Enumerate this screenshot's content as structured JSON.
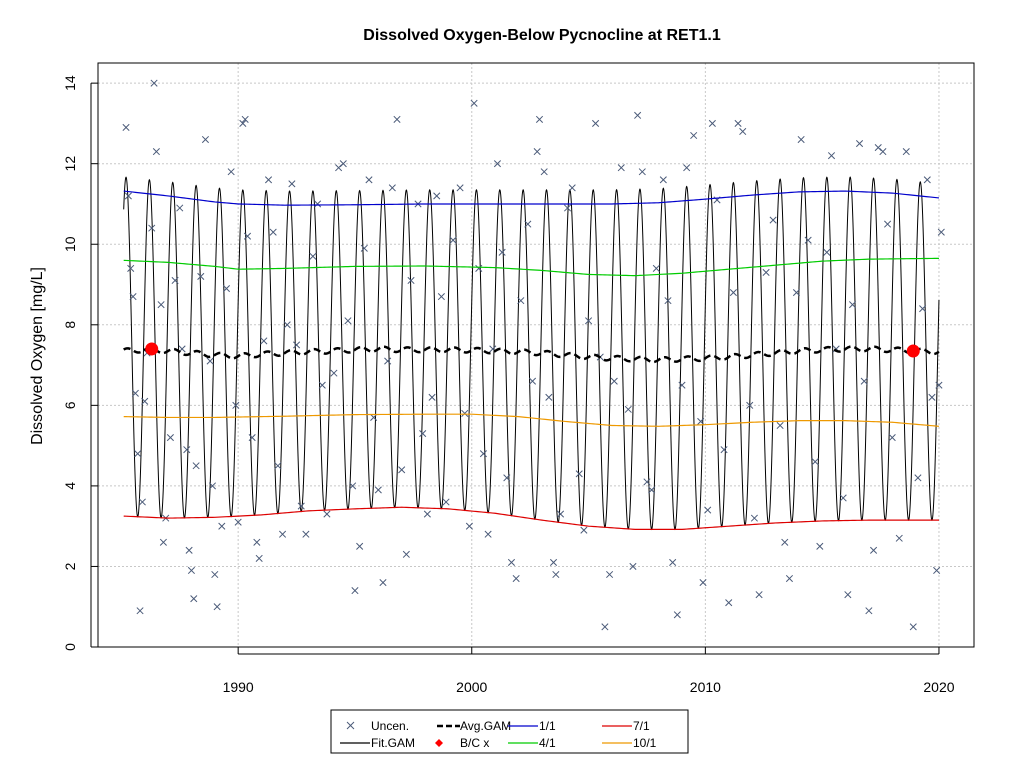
{
  "chart_data": {
    "type": "line",
    "title": "Dissolved Oxygen-Below Pycnocline at RET1.1",
    "xlabel": "",
    "ylabel": "Dissolved Oxygen [mg/L]",
    "xlim": [
      1984,
      2021.5
    ],
    "ylim": [
      0,
      14.5
    ],
    "x_ticks": [
      "1990",
      "2000",
      "2010",
      "2020"
    ],
    "y_ticks": [
      "0",
      "2",
      "4",
      "6",
      "8",
      "10",
      "12",
      "14"
    ],
    "grid": true,
    "legend_position": "bottom",
    "colors": {
      "uncen": "#4a5a78",
      "fit_gam": "#000000",
      "avg_gam": "#000000",
      "bc": "#ff0000",
      "q1_1": "#0000cc",
      "q4_1": "#00cc00",
      "q7_1": "#dd0000",
      "q10_1": "#ee9900",
      "grid": "#c8c8c8"
    },
    "legend": [
      {
        "label": "Uncen.",
        "key": "uncen",
        "symbol": "x-icon"
      },
      {
        "label": "Avg.GAM",
        "key": "avg_gam",
        "symbol": "dashed-line"
      },
      {
        "label": "1/1",
        "key": "q1_1",
        "symbol": "line"
      },
      {
        "label": "7/1",
        "key": "q7_1",
        "symbol": "line"
      },
      {
        "label": "Fit.GAM",
        "key": "fit_gam",
        "symbol": "line"
      },
      {
        "label": "B/C x",
        "key": "bc",
        "symbol": "diamond-icon"
      },
      {
        "label": "4/1",
        "key": "q4_1",
        "symbol": "line"
      },
      {
        "label": "10/1",
        "key": "q10_1",
        "symbol": "line"
      }
    ],
    "series": [
      {
        "name": "Uncen.",
        "kind": "scatter",
        "points": [
          [
            1985.2,
            12.9
          ],
          [
            1985.3,
            11.2
          ],
          [
            1985.4,
            9.4
          ],
          [
            1985.5,
            8.7
          ],
          [
            1985.6,
            6.3
          ],
          [
            1985.7,
            4.8
          ],
          [
            1985.8,
            0.9
          ],
          [
            1985.9,
            3.6
          ],
          [
            1986.0,
            6.1
          ],
          [
            1986.1,
            7.3
          ],
          [
            1986.3,
            10.4
          ],
          [
            1986.4,
            14.0
          ],
          [
            1986.5,
            12.3
          ],
          [
            1986.7,
            8.5
          ],
          [
            1986.8,
            2.6
          ],
          [
            1986.9,
            3.2
          ],
          [
            1987.1,
            5.2
          ],
          [
            1987.3,
            9.1
          ],
          [
            1987.5,
            10.9
          ],
          [
            1987.6,
            7.4
          ],
          [
            1987.8,
            4.9
          ],
          [
            1987.9,
            2.4
          ],
          [
            1988.0,
            1.9
          ],
          [
            1988.1,
            1.2
          ],
          [
            1988.2,
            4.5
          ],
          [
            1988.4,
            9.2
          ],
          [
            1988.6,
            12.6
          ],
          [
            1988.8,
            7.1
          ],
          [
            1988.9,
            4.0
          ],
          [
            1989.0,
            1.8
          ],
          [
            1989.1,
            1.0
          ],
          [
            1989.3,
            3.0
          ],
          [
            1989.5,
            8.9
          ],
          [
            1989.7,
            11.8
          ],
          [
            1989.9,
            6.0
          ],
          [
            1990.0,
            3.1
          ],
          [
            1990.2,
            13.0
          ],
          [
            1990.3,
            13.1
          ],
          [
            1990.4,
            10.2
          ],
          [
            1990.6,
            5.2
          ],
          [
            1990.8,
            2.6
          ],
          [
            1990.9,
            2.2
          ],
          [
            1991.1,
            7.6
          ],
          [
            1991.3,
            11.6
          ],
          [
            1991.5,
            10.3
          ],
          [
            1991.7,
            4.5
          ],
          [
            1991.9,
            2.8
          ],
          [
            1992.1,
            8.0
          ],
          [
            1992.3,
            11.5
          ],
          [
            1992.5,
            7.5
          ],
          [
            1992.7,
            3.5
          ],
          [
            1992.9,
            2.8
          ],
          [
            1993.2,
            9.7
          ],
          [
            1993.4,
            11.0
          ],
          [
            1993.6,
            6.5
          ],
          [
            1993.8,
            3.3
          ],
          [
            1994.1,
            6.8
          ],
          [
            1994.3,
            11.9
          ],
          [
            1994.5,
            12.0
          ],
          [
            1994.7,
            8.1
          ],
          [
            1994.9,
            4.0
          ],
          [
            1995.0,
            1.4
          ],
          [
            1995.2,
            2.5
          ],
          [
            1995.4,
            9.9
          ],
          [
            1995.6,
            11.6
          ],
          [
            1995.8,
            5.7
          ],
          [
            1996.0,
            3.9
          ],
          [
            1996.2,
            1.6
          ],
          [
            1996.4,
            7.1
          ],
          [
            1996.6,
            11.4
          ],
          [
            1996.8,
            13.1
          ],
          [
            1997.0,
            4.4
          ],
          [
            1997.2,
            2.3
          ],
          [
            1997.4,
            9.1
          ],
          [
            1997.7,
            11.0
          ],
          [
            1997.9,
            5.3
          ],
          [
            1998.1,
            3.3
          ],
          [
            1998.3,
            6.2
          ],
          [
            1998.5,
            11.2
          ],
          [
            1998.7,
            8.7
          ],
          [
            1998.9,
            3.6
          ],
          [
            1999.2,
            10.1
          ],
          [
            1999.5,
            11.4
          ],
          [
            1999.7,
            5.8
          ],
          [
            1999.9,
            3.0
          ],
          [
            2000.1,
            13.5
          ],
          [
            2000.3,
            9.4
          ],
          [
            2000.5,
            4.8
          ],
          [
            2000.7,
            2.8
          ],
          [
            2000.9,
            7.4
          ],
          [
            2001.1,
            12.0
          ],
          [
            2001.3,
            9.8
          ],
          [
            2001.5,
            4.2
          ],
          [
            2001.7,
            2.1
          ],
          [
            2001.9,
            1.7
          ],
          [
            2002.1,
            8.6
          ],
          [
            2002.4,
            10.5
          ],
          [
            2002.6,
            6.6
          ],
          [
            2002.8,
            12.3
          ],
          [
            2002.9,
            13.1
          ],
          [
            2003.1,
            11.8
          ],
          [
            2003.3,
            6.2
          ],
          [
            2003.5,
            2.1
          ],
          [
            2003.6,
            1.8
          ],
          [
            2003.8,
            3.3
          ],
          [
            2004.1,
            10.9
          ],
          [
            2004.3,
            11.4
          ],
          [
            2004.6,
            4.3
          ],
          [
            2004.8,
            2.9
          ],
          [
            2005.0,
            8.1
          ],
          [
            2005.3,
            13.0
          ],
          [
            2005.5,
            7.2
          ],
          [
            2005.7,
            0.5
          ],
          [
            2005.9,
            1.8
          ],
          [
            2006.1,
            6.6
          ],
          [
            2006.4,
            11.9
          ],
          [
            2006.7,
            5.9
          ],
          [
            2006.9,
            2.0
          ],
          [
            2007.1,
            13.2
          ],
          [
            2007.3,
            11.8
          ],
          [
            2007.5,
            4.1
          ],
          [
            2007.7,
            3.9
          ],
          [
            2007.9,
            9.4
          ],
          [
            2008.2,
            11.6
          ],
          [
            2008.4,
            8.6
          ],
          [
            2008.6,
            2.1
          ],
          [
            2008.8,
            0.8
          ],
          [
            2009.0,
            6.5
          ],
          [
            2009.2,
            11.9
          ],
          [
            2009.5,
            12.7
          ],
          [
            2009.8,
            5.6
          ],
          [
            2009.9,
            1.6
          ],
          [
            2010.1,
            3.4
          ],
          [
            2010.3,
            13.0
          ],
          [
            2010.5,
            11.1
          ],
          [
            2010.8,
            4.9
          ],
          [
            2011.0,
            1.1
          ],
          [
            2011.2,
            8.8
          ],
          [
            2011.4,
            13.0
          ],
          [
            2011.6,
            12.8
          ],
          [
            2011.9,
            6.0
          ],
          [
            2012.1,
            3.2
          ],
          [
            2012.3,
            1.3
          ],
          [
            2012.6,
            9.3
          ],
          [
            2012.9,
            10.6
          ],
          [
            2013.2,
            5.5
          ],
          [
            2013.4,
            2.6
          ],
          [
            2013.6,
            1.7
          ],
          [
            2013.9,
            8.8
          ],
          [
            2014.1,
            12.6
          ],
          [
            2014.4,
            10.1
          ],
          [
            2014.7,
            4.6
          ],
          [
            2014.9,
            2.5
          ],
          [
            2015.2,
            9.8
          ],
          [
            2015.4,
            12.2
          ],
          [
            2015.6,
            7.4
          ],
          [
            2015.9,
            3.7
          ],
          [
            2016.1,
            1.3
          ],
          [
            2016.3,
            8.5
          ],
          [
            2016.6,
            12.5
          ],
          [
            2016.8,
            6.6
          ],
          [
            2017.0,
            0.9
          ],
          [
            2017.2,
            2.4
          ],
          [
            2017.4,
            12.4
          ],
          [
            2017.6,
            12.3
          ],
          [
            2017.8,
            10.5
          ],
          [
            2018.0,
            5.2
          ],
          [
            2018.3,
            2.7
          ],
          [
            2018.6,
            12.3
          ],
          [
            2018.9,
            0.5
          ],
          [
            2019.1,
            4.2
          ],
          [
            2019.3,
            8.4
          ],
          [
            2019.5,
            11.6
          ],
          [
            2019.7,
            6.2
          ],
          [
            2019.9,
            1.9
          ],
          [
            2020.0,
            6.5
          ],
          [
            2020.1,
            10.3
          ]
        ]
      },
      {
        "name": "Fit.GAM",
        "kind": "seasonal",
        "x_range": [
          1985.1,
          2020.0
        ],
        "peak_frac": 0.2,
        "period": 1.0,
        "note_center": "oscillates between 1/1 and 7/1 quantile curves"
      },
      {
        "name": "Avg.GAM",
        "kind": "line",
        "points": [
          [
            1985.1,
            7.35
          ],
          [
            1986.0,
            7.38
          ],
          [
            1987.0,
            7.35
          ],
          [
            1988.0,
            7.3
          ],
          [
            1989.0,
            7.25
          ],
          [
            1990.0,
            7.22
          ],
          [
            1991.0,
            7.27
          ],
          [
            1992.0,
            7.3
          ],
          [
            1993.0,
            7.33
          ],
          [
            1994.0,
            7.35
          ],
          [
            1995.0,
            7.38
          ],
          [
            1996.0,
            7.4
          ],
          [
            1997.0,
            7.38
          ],
          [
            1998.0,
            7.38
          ],
          [
            1999.0,
            7.38
          ],
          [
            2000.0,
            7.37
          ],
          [
            2001.0,
            7.35
          ],
          [
            2002.0,
            7.33
          ],
          [
            2003.0,
            7.3
          ],
          [
            2004.0,
            7.25
          ],
          [
            2005.0,
            7.2
          ],
          [
            2006.0,
            7.17
          ],
          [
            2007.0,
            7.15
          ],
          [
            2008.0,
            7.13
          ],
          [
            2009.0,
            7.15
          ],
          [
            2010.0,
            7.17
          ],
          [
            2011.0,
            7.2
          ],
          [
            2012.0,
            7.25
          ],
          [
            2013.0,
            7.3
          ],
          [
            2014.0,
            7.35
          ],
          [
            2015.0,
            7.38
          ],
          [
            2016.0,
            7.4
          ],
          [
            2017.0,
            7.4
          ],
          [
            2018.0,
            7.38
          ],
          [
            2019.0,
            7.35
          ],
          [
            2020.0,
            7.33
          ]
        ]
      },
      {
        "name": "B/C x",
        "kind": "points",
        "points": [
          [
            1986.3,
            7.4
          ],
          [
            2018.9,
            7.35
          ]
        ]
      },
      {
        "name": "1/1",
        "kind": "line",
        "points": [
          [
            1985.1,
            11.32
          ],
          [
            1987.0,
            11.2
          ],
          [
            1989.0,
            11.05
          ],
          [
            1990.0,
            11.0
          ],
          [
            1992.0,
            10.97
          ],
          [
            1995.0,
            10.98
          ],
          [
            1998.0,
            11.0
          ],
          [
            2001.0,
            11.0
          ],
          [
            2004.0,
            11.0
          ],
          [
            2006.0,
            11.0
          ],
          [
            2008.0,
            11.03
          ],
          [
            2010.0,
            11.12
          ],
          [
            2012.0,
            11.22
          ],
          [
            2014.0,
            11.3
          ],
          [
            2016.0,
            11.32
          ],
          [
            2018.0,
            11.27
          ],
          [
            2020.0,
            11.15
          ]
        ]
      },
      {
        "name": "4/1",
        "kind": "line",
        "points": [
          [
            1985.1,
            9.6
          ],
          [
            1987.0,
            9.55
          ],
          [
            1989.0,
            9.45
          ],
          [
            1990.0,
            9.38
          ],
          [
            1992.0,
            9.4
          ],
          [
            1995.0,
            9.45
          ],
          [
            1998.0,
            9.46
          ],
          [
            2001.0,
            9.42
          ],
          [
            2003.0,
            9.35
          ],
          [
            2005.0,
            9.25
          ],
          [
            2007.0,
            9.22
          ],
          [
            2009.0,
            9.28
          ],
          [
            2011.0,
            9.38
          ],
          [
            2013.0,
            9.48
          ],
          [
            2015.0,
            9.58
          ],
          [
            2017.0,
            9.63
          ],
          [
            2020.0,
            9.65
          ]
        ]
      },
      {
        "name": "7/1",
        "kind": "line",
        "points": [
          [
            1985.1,
            3.25
          ],
          [
            1987.0,
            3.2
          ],
          [
            1989.0,
            3.22
          ],
          [
            1991.0,
            3.28
          ],
          [
            1993.0,
            3.38
          ],
          [
            1995.0,
            3.43
          ],
          [
            1997.0,
            3.47
          ],
          [
            1999.0,
            3.43
          ],
          [
            2001.0,
            3.32
          ],
          [
            2003.0,
            3.15
          ],
          [
            2005.0,
            3.0
          ],
          [
            2007.0,
            2.92
          ],
          [
            2009.0,
            2.92
          ],
          [
            2011.0,
            3.0
          ],
          [
            2013.0,
            3.08
          ],
          [
            2015.0,
            3.13
          ],
          [
            2017.0,
            3.15
          ],
          [
            2020.0,
            3.15
          ]
        ]
      },
      {
        "name": "10/1",
        "kind": "line",
        "points": [
          [
            1985.1,
            5.72
          ],
          [
            1987.0,
            5.7
          ],
          [
            1989.0,
            5.7
          ],
          [
            1992.0,
            5.73
          ],
          [
            1995.0,
            5.77
          ],
          [
            1998.0,
            5.78
          ],
          [
            2000.0,
            5.78
          ],
          [
            2002.0,
            5.72
          ],
          [
            2004.0,
            5.6
          ],
          [
            2006.0,
            5.5
          ],
          [
            2008.0,
            5.48
          ],
          [
            2010.0,
            5.52
          ],
          [
            2012.0,
            5.58
          ],
          [
            2014.0,
            5.62
          ],
          [
            2016.0,
            5.62
          ],
          [
            2018.0,
            5.58
          ],
          [
            2020.0,
            5.48
          ]
        ]
      }
    ]
  }
}
